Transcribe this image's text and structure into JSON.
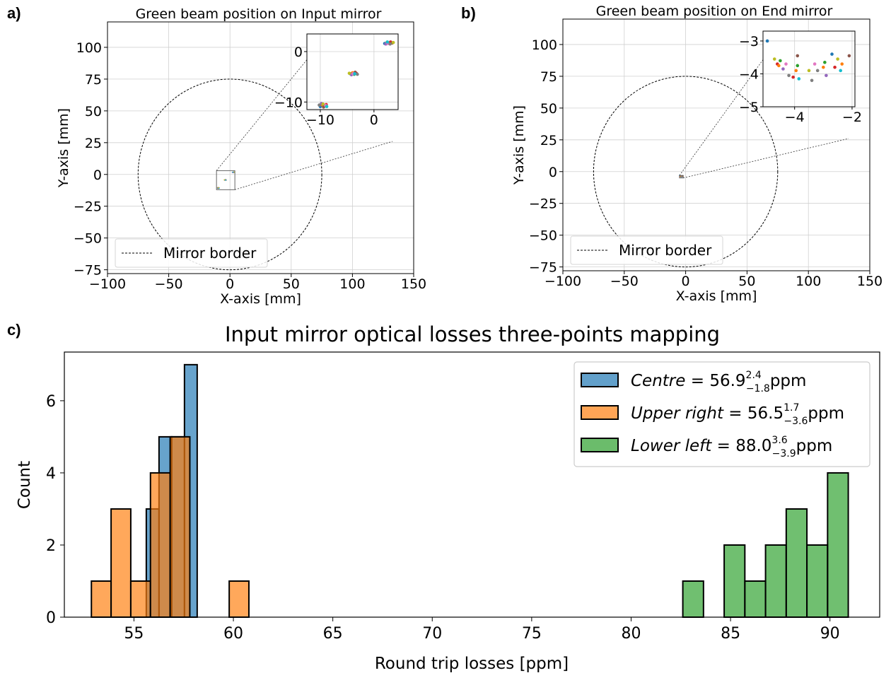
{
  "figure": {
    "panels": [
      "a)",
      "b)",
      "c)"
    ]
  },
  "chart_data": [
    {
      "id": "a",
      "type": "scatter",
      "panel_label": "a)",
      "title": "Green beam position on Input mirror",
      "xlabel": "X-axis [mm]",
      "ylabel": "Y-axis [mm]",
      "xlim": [
        -100,
        150
      ],
      "ylim": [
        -78,
        120
      ],
      "xticks": [
        -100,
        -50,
        0,
        50,
        100,
        150
      ],
      "yticks": [
        -75,
        -50,
        -25,
        0,
        25,
        50,
        75,
        100
      ],
      "xtick_labels": [
        "−100",
        "−50",
        "0",
        "50",
        "100",
        "150"
      ],
      "ytick_labels": [
        "−75",
        "−50",
        "−25",
        "0",
        "25",
        "50",
        "75",
        "100"
      ],
      "grid": true,
      "mirror_radius": 75,
      "legend": {
        "label": "Mirror border",
        "placement": "lower-left"
      },
      "zoom_box": {
        "xlim": [
          -11,
          4
        ],
        "ylim": [
          -12,
          3
        ]
      },
      "inset": {
        "placement": "upper-right",
        "xlim": [
          -12.5,
          4.5
        ],
        "ylim": [
          -11.5,
          3.5
        ],
        "xticks": [
          -10,
          0
        ],
        "yticks": [
          -10,
          0
        ],
        "xtick_labels": [
          "−10",
          "0"
        ],
        "ytick_labels": [
          "−10",
          "0"
        ]
      },
      "points": [
        {
          "x": 2.0,
          "y": 1.6,
          "color": "#1f77b4"
        },
        {
          "x": 2.4,
          "y": 1.8,
          "color": "#ff7f0e"
        },
        {
          "x": 2.8,
          "y": 1.7,
          "color": "#2ca02c"
        },
        {
          "x": 3.1,
          "y": 1.9,
          "color": "#d62728"
        },
        {
          "x": 2.2,
          "y": 1.5,
          "color": "#9467bd"
        },
        {
          "x": 3.4,
          "y": 1.7,
          "color": "#8c564b"
        },
        {
          "x": 2.6,
          "y": 1.6,
          "color": "#e377c2"
        },
        {
          "x": 3.0,
          "y": 1.5,
          "color": "#7f7f7f"
        },
        {
          "x": 3.6,
          "y": 1.8,
          "color": "#bcbd22"
        },
        {
          "x": 2.5,
          "y": 1.9,
          "color": "#17becf"
        },
        {
          "x": -4.4,
          "y": -4.4,
          "color": "#1f77b4"
        },
        {
          "x": -4.0,
          "y": -4.2,
          "color": "#ff7f0e"
        },
        {
          "x": -3.7,
          "y": -4.5,
          "color": "#2ca02c"
        },
        {
          "x": -3.3,
          "y": -4.3,
          "color": "#d62728"
        },
        {
          "x": -4.2,
          "y": -4.6,
          "color": "#9467bd"
        },
        {
          "x": -3.5,
          "y": -4.1,
          "color": "#8c564b"
        },
        {
          "x": -3.9,
          "y": -4.4,
          "color": "#e377c2"
        },
        {
          "x": -3.1,
          "y": -4.5,
          "color": "#7f7f7f"
        },
        {
          "x": -4.6,
          "y": -4.3,
          "color": "#bcbd22"
        },
        {
          "x": -3.6,
          "y": -4.4,
          "color": "#17becf"
        },
        {
          "x": -10.0,
          "y": -10.9,
          "color": "#1f77b4"
        },
        {
          "x": -9.6,
          "y": -10.6,
          "color": "#ff7f0e"
        },
        {
          "x": -9.2,
          "y": -10.8,
          "color": "#2ca02c"
        },
        {
          "x": -8.9,
          "y": -10.5,
          "color": "#d62728"
        },
        {
          "x": -9.8,
          "y": -10.3,
          "color": "#9467bd"
        },
        {
          "x": -9.4,
          "y": -11.0,
          "color": "#8c564b"
        },
        {
          "x": -9.0,
          "y": -10.7,
          "color": "#e377c2"
        },
        {
          "x": -10.2,
          "y": -10.6,
          "color": "#7f7f7f"
        },
        {
          "x": -9.5,
          "y": -10.4,
          "color": "#bcbd22"
        },
        {
          "x": -8.8,
          "y": -10.9,
          "color": "#17becf"
        }
      ]
    },
    {
      "id": "b",
      "type": "scatter",
      "panel_label": "b)",
      "title": "Green beam position on End mirror",
      "xlabel": "X-axis [mm]",
      "ylabel": "Y-axis [mm]",
      "xlim": [
        -100,
        150
      ],
      "ylim": [
        -78,
        120
      ],
      "xticks": [
        -100,
        -50,
        0,
        50,
        100,
        150
      ],
      "yticks": [
        -75,
        -50,
        -25,
        0,
        25,
        50,
        75,
        100
      ],
      "xtick_labels": [
        "−100",
        "−50",
        "0",
        "50",
        "100",
        "150"
      ],
      "ytick_labels": [
        "−75",
        "−50",
        "−25",
        "0",
        "25",
        "50",
        "75",
        "100"
      ],
      "grid": true,
      "mirror_radius": 75,
      "legend": {
        "label": "Mirror border",
        "placement": "lower-left"
      },
      "zoom_box": {
        "xlim": [
          -5,
          -2
        ],
        "ylim": [
          -5,
          -3
        ]
      },
      "inset": {
        "placement": "upper-right",
        "xlim": [
          -5.1,
          -1.9
        ],
        "ylim": [
          -5,
          -2.7
        ],
        "xticks": [
          -4,
          -2
        ],
        "yticks": [
          -5,
          -4,
          -3
        ],
        "xtick_labels": [
          "−4",
          "−2"
        ],
        "ytick_labels": [
          "−5",
          "−4",
          "−3"
        ]
      },
      "points": [
        {
          "x": -4.95,
          "y": -3.0,
          "color": "#1f77b4"
        },
        {
          "x": -4.7,
          "y": -3.55,
          "color": "#bcbd22"
        },
        {
          "x": -4.6,
          "y": -3.7,
          "color": "#d62728"
        },
        {
          "x": -4.5,
          "y": -3.6,
          "color": "#2ca02c"
        },
        {
          "x": -4.4,
          "y": -3.85,
          "color": "#9467bd"
        },
        {
          "x": -4.3,
          "y": -3.7,
          "color": "#e377c2"
        },
        {
          "x": -4.2,
          "y": -4.05,
          "color": "#7f7f7f"
        },
        {
          "x": -4.05,
          "y": -4.1,
          "color": "#d62728"
        },
        {
          "x": -3.95,
          "y": -3.9,
          "color": "#ff7f0e"
        },
        {
          "x": -3.9,
          "y": -3.75,
          "color": "#2ca02c"
        },
        {
          "x": -3.85,
          "y": -4.15,
          "color": "#17becf"
        },
        {
          "x": -3.9,
          "y": -3.45,
          "color": "#8c564b"
        },
        {
          "x": -3.5,
          "y": -3.9,
          "color": "#bcbd22"
        },
        {
          "x": -3.4,
          "y": -4.2,
          "color": "#7f7f7f"
        },
        {
          "x": -3.3,
          "y": -3.7,
          "color": "#e377c2"
        },
        {
          "x": -3.0,
          "y": -3.8,
          "color": "#ff7f0e"
        },
        {
          "x": -2.95,
          "y": -3.65,
          "color": "#2ca02c"
        },
        {
          "x": -2.9,
          "y": -4.05,
          "color": "#9467bd"
        },
        {
          "x": -2.7,
          "y": -3.4,
          "color": "#1f77b4"
        },
        {
          "x": -2.6,
          "y": -3.8,
          "color": "#d62728"
        },
        {
          "x": -2.5,
          "y": -3.55,
          "color": "#bcbd22"
        },
        {
          "x": -2.4,
          "y": -3.9,
          "color": "#17becf"
        },
        {
          "x": -2.35,
          "y": -3.7,
          "color": "#ff7f0e"
        },
        {
          "x": -2.1,
          "y": -3.45,
          "color": "#8c564b"
        },
        {
          "x": -4.55,
          "y": -3.75,
          "color": "#ff7f0e"
        },
        {
          "x": -3.2,
          "y": -3.9,
          "color": "#7f7f7f"
        }
      ]
    },
    {
      "id": "c",
      "type": "histogram",
      "panel_label": "c)",
      "title": "Input mirror optical losses three-points mapping",
      "xlabel": "Round trip losses [ppm]",
      "ylabel": "Count",
      "xlim": [
        51.5,
        92.5
      ],
      "ylim": [
        0,
        7.35
      ],
      "xticks": [
        55,
        60,
        65,
        70,
        75,
        80,
        85,
        90
      ],
      "yticks": [
        0,
        2,
        4,
        6
      ],
      "grid": false,
      "legend": {
        "placement": "upper-right"
      },
      "series": [
        {
          "name": "Centre",
          "legend_main": "Centre",
          "legend_value": "56.9",
          "legend_sup": "2.4",
          "legend_sub": "−1.8",
          "legend_unit": "ppm",
          "color": "#1f77b4",
          "bins": [
            {
              "x0": 55.62,
              "x1": 56.26,
              "count": 3
            },
            {
              "x0": 56.26,
              "x1": 56.9,
              "count": 5
            },
            {
              "x0": 56.9,
              "x1": 57.54,
              "count": 5
            },
            {
              "x0": 57.54,
              "x1": 58.18,
              "count": 7
            }
          ]
        },
        {
          "name": "Upper right",
          "legend_main": "Upper right",
          "legend_value": "56.5",
          "legend_sup": "1.7",
          "legend_sub": "−3.6",
          "legend_unit": "ppm",
          "color": "#ff7f0e",
          "bins": [
            {
              "x0": 52.86,
              "x1": 53.85,
              "count": 1
            },
            {
              "x0": 53.85,
              "x1": 54.84,
              "count": 3
            },
            {
              "x0": 54.84,
              "x1": 55.83,
              "count": 1
            },
            {
              "x0": 55.83,
              "x1": 56.82,
              "count": 4
            },
            {
              "x0": 56.82,
              "x1": 57.81,
              "count": 5
            },
            {
              "x0": 57.81,
              "x1": 58.8,
              "count": 0
            },
            {
              "x0": 58.8,
              "x1": 59.79,
              "count": 0
            },
            {
              "x0": 59.79,
              "x1": 60.78,
              "count": 1
            }
          ]
        },
        {
          "name": "Lower left",
          "legend_main": "Lower left",
          "legend_value": "88.0",
          "legend_sup": "3.6",
          "legend_sub": "−3.9",
          "legend_unit": "ppm",
          "color": "#2ca02c",
          "bins": [
            {
              "x0": 82.6,
              "x1": 83.64,
              "count": 1
            },
            {
              "x0": 83.64,
              "x1": 84.68,
              "count": 0
            },
            {
              "x0": 84.68,
              "x1": 85.72,
              "count": 2
            },
            {
              "x0": 85.72,
              "x1": 86.76,
              "count": 1
            },
            {
              "x0": 86.76,
              "x1": 87.8,
              "count": 2
            },
            {
              "x0": 87.8,
              "x1": 88.84,
              "count": 3
            },
            {
              "x0": 88.84,
              "x1": 89.88,
              "count": 2
            },
            {
              "x0": 89.88,
              "x1": 90.92,
              "count": 4
            }
          ]
        }
      ]
    }
  ]
}
